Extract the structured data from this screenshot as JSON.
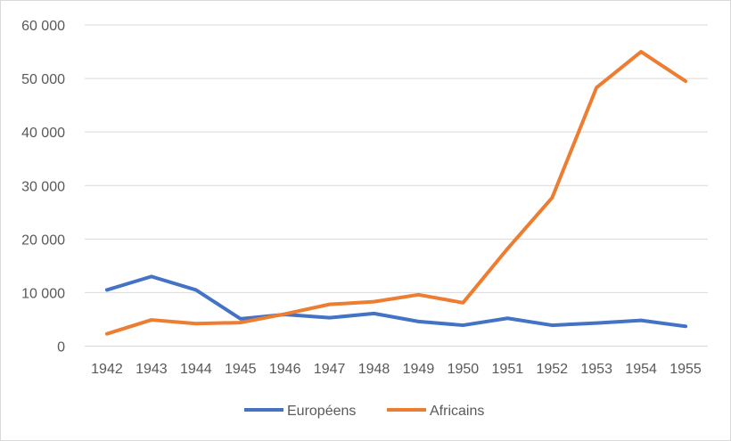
{
  "chart_data": {
    "type": "line",
    "title": "",
    "xlabel": "",
    "ylabel": "",
    "x": [
      "1942",
      "1943",
      "1944",
      "1945",
      "1946",
      "1947",
      "1948",
      "1949",
      "1950",
      "1951",
      "1952",
      "1953",
      "1954",
      "1955"
    ],
    "ylim": [
      0,
      60000
    ],
    "yticks": [
      0,
      10000,
      20000,
      30000,
      40000,
      50000,
      60000
    ],
    "ytick_labels": [
      "0",
      "10 000",
      "20 000",
      "30 000",
      "40 000",
      "50 000",
      "60 000"
    ],
    "grid": true,
    "legend_position": "bottom",
    "series": [
      {
        "name": "Européens",
        "color": "#4472c4",
        "values": [
          10500,
          13000,
          10500,
          5100,
          5900,
          5300,
          6100,
          4600,
          3900,
          5200,
          3900,
          4300,
          4800,
          3700
        ]
      },
      {
        "name": "Africains",
        "color": "#ed7d31",
        "values": [
          2300,
          4900,
          4200,
          4400,
          6000,
          7800,
          8300,
          9600,
          8100,
          18200,
          27700,
          48300,
          55000,
          49500
        ]
      }
    ]
  }
}
